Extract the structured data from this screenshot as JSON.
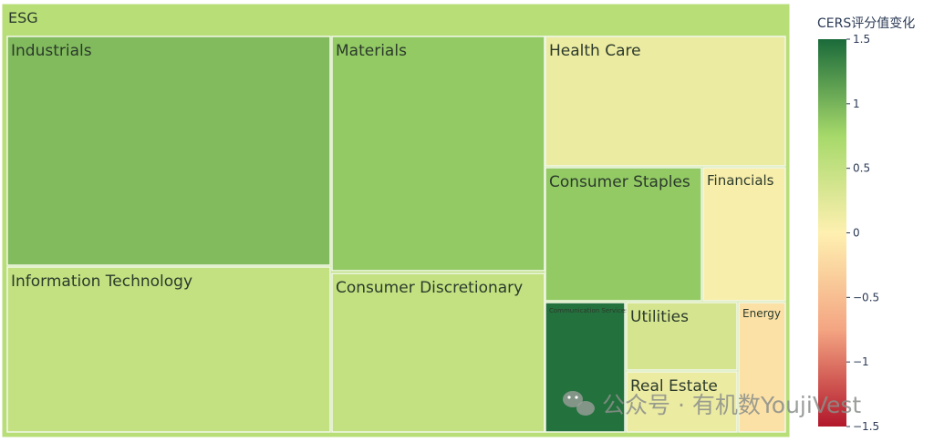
{
  "chart_data": {
    "type": "treemap",
    "root": "ESG",
    "color_metric": "CERS评分值变化",
    "color_range": [
      -1.5,
      1.5
    ],
    "colorscale": [
      "#b2182b",
      "#f4a582",
      "#fef0b0",
      "#a6d96a",
      "#1a6a3a"
    ],
    "nodes": [
      {
        "label": "Industrials",
        "color_value": 0.95
      },
      {
        "label": "Materials",
        "color_value": 0.85
      },
      {
        "label": "Health Care",
        "color_value": 0.15
      },
      {
        "label": "Information Technology",
        "color_value": 0.5
      },
      {
        "label": "Consumer Discretionary",
        "color_value": 0.5
      },
      {
        "label": "Consumer Staples",
        "color_value": 0.85
      },
      {
        "label": "Financials",
        "color_value": 0.05
      },
      {
        "label": "Communication Services",
        "color_value": 1.45
      },
      {
        "label": "Utilities",
        "color_value": 0.35
      },
      {
        "label": "Real Estate",
        "color_value": 0.15
      },
      {
        "label": "Energy",
        "color_value": -0.15
      }
    ],
    "root_color_value": 0.6
  },
  "colorbar": {
    "title": "CERS评分值变化",
    "ticks": [
      {
        "value": 1.5,
        "label": "1.5"
      },
      {
        "value": 1,
        "label": "1"
      },
      {
        "value": 0.5,
        "label": "0.5"
      },
      {
        "value": 0,
        "label": "0"
      },
      {
        "value": -0.5,
        "label": "−0.5"
      },
      {
        "value": -1,
        "label": "−1"
      },
      {
        "value": -1.5,
        "label": "−1.5"
      }
    ]
  },
  "watermark": {
    "text": "公众号 · 有机数YoujiVest",
    "icon": "wechat-icon"
  }
}
